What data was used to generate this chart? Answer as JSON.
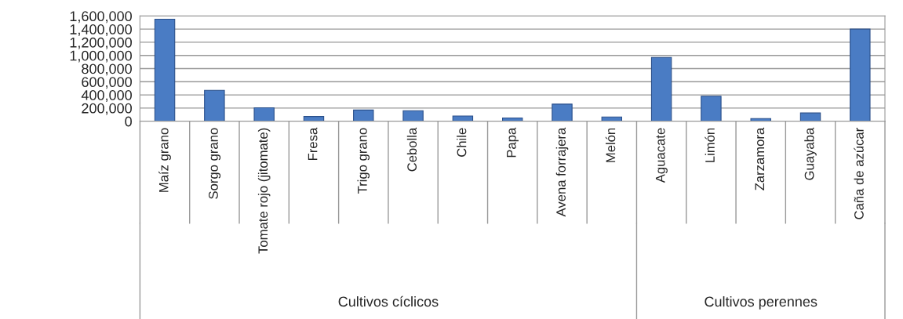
{
  "chart_data": {
    "type": "bar",
    "categories": [
      "Maíz grano",
      "Sorgo grano",
      "Tomate rojo (jitomate)",
      "Fresa",
      "Trigo grano",
      "Cebolla",
      "Chile",
      "Papa",
      "Avena forrajera",
      "Melón",
      "Aguacate",
      "Limón",
      "Zarzamora",
      "Guayaba",
      "Caña de azúcar"
    ],
    "values": [
      1550000,
      470000,
      205000,
      72000,
      170000,
      160000,
      80000,
      50000,
      260000,
      65000,
      970000,
      380000,
      40000,
      125000,
      1400000
    ],
    "color": "#4a7cc4",
    "ylim": [
      0,
      1600000
    ],
    "yticks": [
      {
        "value": 0,
        "label": "0"
      },
      {
        "value": 200000,
        "label": "200,000"
      },
      {
        "value": 400000,
        "label": "400,000"
      },
      {
        "value": 600000,
        "label": "600,000"
      },
      {
        "value": 800000,
        "label": "800,000"
      },
      {
        "value": 1000000,
        "label": "1,000,000"
      },
      {
        "value": 1200000,
        "label": "1,200,000"
      },
      {
        "value": 1400000,
        "label": "1,400,000"
      },
      {
        "value": 1600000,
        "label": "1,600,000"
      }
    ],
    "grid": "y",
    "annotations": [
      "Cultivos cíclicos",
      "Cultivos perennes"
    ]
  }
}
